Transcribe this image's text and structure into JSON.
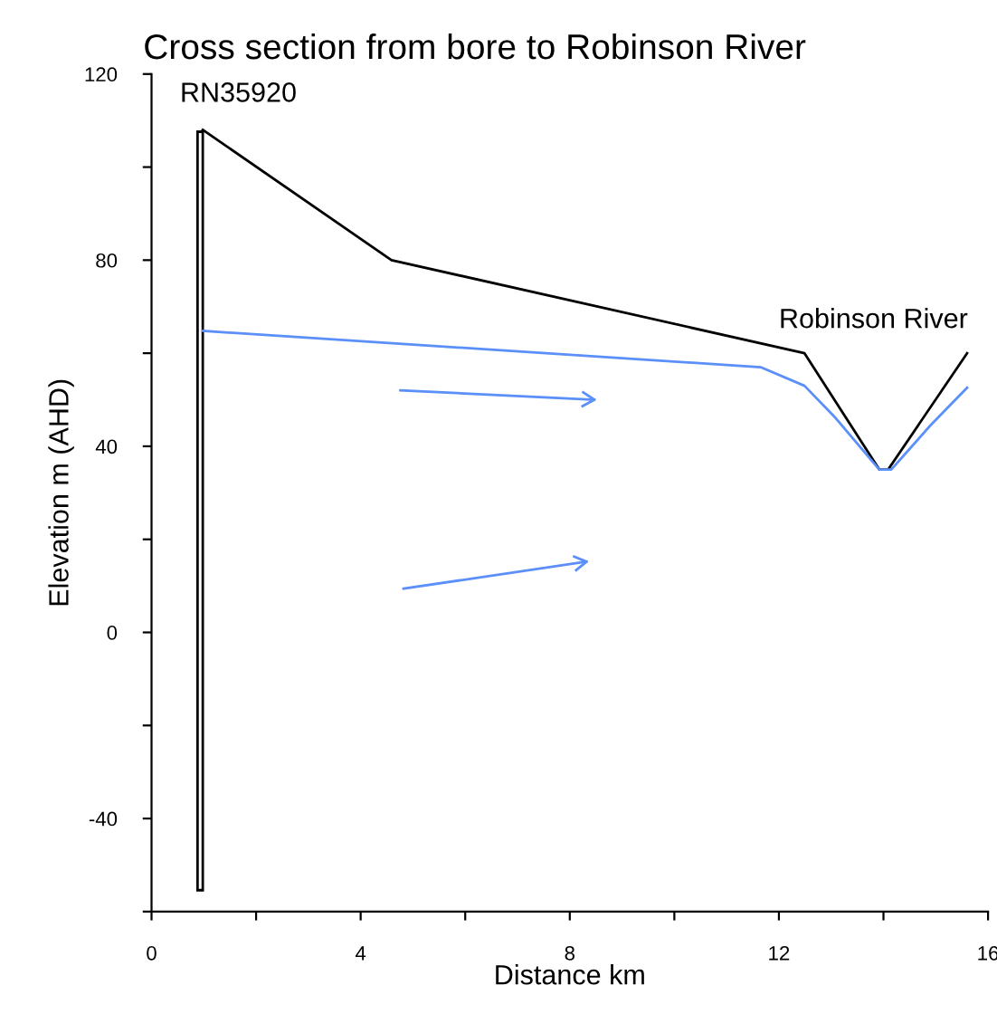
{
  "chart_data": {
    "type": "line",
    "title": "Cross section from bore to Robinson River",
    "xlabel": "Distance km",
    "ylabel": "Elevation m (AHD)",
    "xlim": [
      0,
      16
    ],
    "xticks": [
      0,
      {
        "value": 2,
        "label": null
      },
      4,
      {
        "value": 6,
        "label": null
      },
      8,
      {
        "value": 10,
        "label": null
      },
      12,
      {
        "value": 14,
        "label": null
      },
      16
    ],
    "ylim": [
      -60,
      120
    ],
    "yticks": [
      {
        "value": -60,
        "label": null
      },
      -40,
      {
        "value": -20,
        "label": null
      },
      0,
      {
        "value": 20,
        "label": null
      },
      40,
      {
        "value": 60,
        "label": null
      },
      80,
      {
        "value": 100,
        "label": null
      },
      120
    ],
    "grid": false,
    "legend": false,
    "marker": "none",
    "line_style": "solid",
    "series": [
      {
        "color": "#000000",
        "x": [
          0.98,
          4.59,
          12.49,
          13.92,
          14.09,
          15.6
        ],
        "values": [
          108,
          80,
          60,
          35,
          35,
          60
        ]
      },
      {
        "type": "bar",
        "color": "#000000",
        "x": [
          0.93
        ],
        "base": [
          -55.4
        ],
        "values": [
          163
        ]
      },
      {
        "color": "#5b8ff9",
        "x": [
          0.98,
          11.65,
          12.49,
          13.09,
          13.92,
          14.15,
          14.9,
          15.6
        ],
        "values": [
          64.8,
          57,
          53,
          46,
          35,
          35,
          44.5,
          52.6
        ]
      },
      {
        "color": "#5b8ff9",
        "x": [
          4.76,
          8.47
        ],
        "values": [
          52,
          50
        ]
      },
      {
        "color": "#5b8ff9",
        "x": [
          4.82,
          8.32
        ],
        "values": [
          9.4,
          15.2
        ]
      }
    ],
    "annotations": [
      "RN35920",
      "Robinson River"
    ]
  }
}
